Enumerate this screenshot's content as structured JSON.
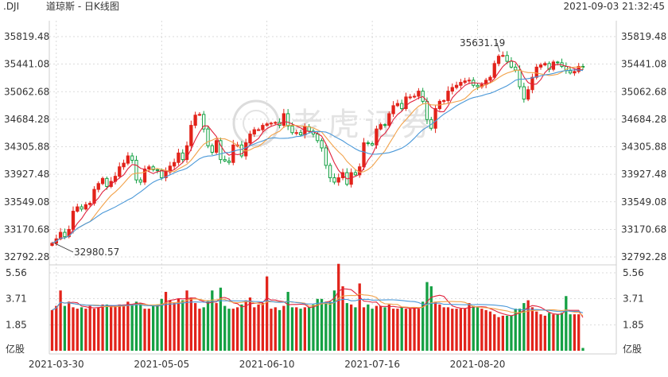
{
  "header": {
    "symbol": ".DJI",
    "title": "道琼斯 - 日K线图",
    "datetime": "2021-09-03 21:32:45"
  },
  "watermark": {
    "text": "老虎证券"
  },
  "colors": {
    "up": "#e2231a",
    "down": "#14a043",
    "ma_short": "#e0213c",
    "ma_mid": "#f2a24a",
    "ma_long": "#4a98d8",
    "grid": "#d0d0d0",
    "axis_text": "#333333"
  },
  "chart_data": [
    {
      "type": "candlestick",
      "title": "道琼斯 - 日K线图",
      "y_ticks": [
        35819.48,
        35441.08,
        35062.68,
        34684.28,
        34305.88,
        33927.48,
        33549.08,
        33170.68,
        32792.28
      ],
      "ylim": [
        32792.28,
        35819.48
      ],
      "x_tick_labels": [
        "2021-03-30",
        "2021-05-05",
        "2021-06-10",
        "2021-07-16",
        "2021-08-20"
      ],
      "annotations": [
        {
          "text": "35631.19",
          "value": 35631.19
        },
        {
          "text": "32980.57",
          "value": 32980.57
        }
      ],
      "closes": [
        32980,
        33040,
        33130,
        33070,
        33170,
        33420,
        33480,
        33450,
        33510,
        33530,
        33720,
        33800,
        33870,
        33760,
        33830,
        33900,
        34030,
        34080,
        34180,
        34120,
        33850,
        33820,
        34000,
        34030,
        33990,
        33980,
        33880,
        33960,
        34040,
        34090,
        34220,
        34130,
        34320,
        34600,
        34740,
        34750,
        34550,
        34320,
        34230,
        34390,
        34130,
        34110,
        34090,
        34330,
        34330,
        34180,
        34360,
        34480,
        34540,
        34540,
        34600,
        34620,
        34630,
        34640,
        34600,
        34760,
        34590,
        34500,
        34500,
        34470,
        34580,
        34520,
        34480,
        34390,
        34290,
        34050,
        33880,
        33820,
        33880,
        33950,
        33790,
        33950,
        33920,
        34030,
        34360,
        34350,
        34330,
        34550,
        34610,
        34600,
        34760,
        34870,
        34900,
        34830,
        34990,
        34990,
        35000,
        35070,
        34930,
        34680,
        34560,
        34830,
        34930,
        34940,
        35070,
        35120,
        35150,
        35190,
        35210,
        35220,
        35150,
        35130,
        35160,
        35220,
        35260,
        35450,
        35550,
        35560,
        35480,
        35400,
        35360,
        35130,
        34960,
        35090,
        35260,
        35400,
        35430,
        35450,
        35370,
        35470,
        35460,
        35410,
        35350,
        35320,
        35340,
        35410,
        35400
      ],
      "volume_y_ticks": [
        5.56,
        3.71,
        1.85
      ],
      "volume_unit": "亿股",
      "volumes": [
        2.9,
        3.2,
        4.3,
        3.2,
        3.5,
        3.1,
        3.0,
        3.1,
        3.0,
        3.2,
        3.0,
        3.1,
        3.3,
        3.3,
        3.2,
        3.2,
        3.3,
        3.3,
        3.5,
        3.3,
        3.5,
        3.4,
        3.0,
        3.0,
        3.2,
        3.3,
        3.7,
        4.2,
        3.6,
        3.4,
        3.7,
        3.6,
        4.3,
        3.8,
        3.4,
        3.0,
        3.1,
        3.6,
        4.3,
        3.4,
        4.5,
        3.2,
        3.0,
        3.0,
        3.1,
        3.3,
        3.6,
        3.8,
        3.1,
        3.3,
        3.4,
        5.3,
        3.0,
        3.1,
        2.9,
        3.2,
        4.2,
        3.1,
        3.1,
        3.0,
        3.1,
        3.1,
        3.3,
        3.7,
        3.7,
        3.5,
        3.5,
        4.3,
        6.2,
        4.6,
        3.4,
        3.3,
        3.1,
        4.8,
        3.1,
        3.3,
        3.0,
        3.2,
        3.2,
        3.1,
        3.3,
        3.0,
        3.0,
        3.1,
        3.0,
        3.0,
        3.1,
        3.0,
        3.5,
        4.9,
        4.6,
        3.5,
        3.3,
        3.1,
        3.1,
        3.0,
        3.0,
        3.0,
        3.0,
        3.4,
        3.2,
        3.1,
        3.0,
        2.9,
        2.8,
        2.6,
        2.4,
        2.5,
        2.5,
        2.5,
        3.0,
        3.0,
        3.4,
        3.6,
        3.1,
        2.8,
        2.6,
        2.5,
        2.7,
        2.6,
        2.6,
        2.7,
        3.9,
        2.6,
        2.6,
        2.6,
        0.2
      ]
    }
  ]
}
